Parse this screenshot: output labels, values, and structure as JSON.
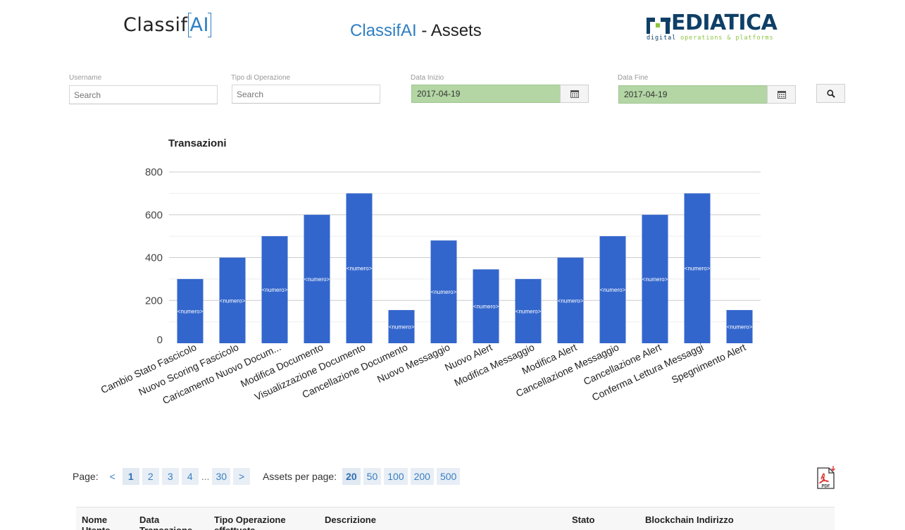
{
  "header": {
    "logo_left_text": "Classif",
    "logo_left_ai": "AI",
    "title_brand": "ClassifAI",
    "title_rest": " - Assets",
    "logo_right_text": "EDIATICA",
    "logo_right_tagline_d": "digital ",
    "logo_right_tagline": "operations & platforms"
  },
  "filters": {
    "username": {
      "label": "Username",
      "placeholder": "Search"
    },
    "tipo_operazione": {
      "label": "Tipo di Operazione",
      "placeholder": "Search"
    },
    "data_inizio": {
      "label": "Data Inizio",
      "value": "2017-04-19"
    },
    "data_fine": {
      "label": "Data Fine",
      "value": "2017-04-19"
    }
  },
  "icons": {
    "calendar": "calendar-icon",
    "search": "search-icon",
    "pdf": "pdf-icon"
  },
  "colors": {
    "accent": "#2f7fc1",
    "bar": "#3366cc",
    "date_bg": "#b3d6a4",
    "brand_dark": "#0f3f66",
    "brand_green": "#8cc63f"
  },
  "chart_data": {
    "type": "bar",
    "title": "Transazioni",
    "xlabel": "",
    "ylabel": "",
    "ylim": [
      0,
      800
    ],
    "yticks": [
      0,
      200,
      400,
      600,
      800
    ],
    "grid": true,
    "categories": [
      "Cambio Stato Fascicolo",
      "Nuovo Scoring Fascicolo",
      "Caricamento Nuovo Docum...",
      "Modifica Documento",
      "Visualizzazione Documento",
      "Cancellazione Documento",
      "Nuovo Messaggio",
      "Nuovo Alert",
      "Modifica Messaggio",
      "Modifica Alert",
      "Cancellazione Messaggio",
      "Cancellazione Alert",
      "Conferma Lettura Messaggi",
      "Spegnimento Alert"
    ],
    "values": [
      300,
      400,
      500,
      600,
      700,
      155,
      480,
      345,
      300,
      400,
      500,
      600,
      700,
      155
    ],
    "bar_label": "<numero>"
  },
  "pagination": {
    "page_label": "Page:",
    "prev": "<",
    "pages": [
      "1",
      "2",
      "3",
      "4"
    ],
    "ellipsis": "...",
    "last": "30",
    "next": ">",
    "per_page_label": "Assets per page:",
    "per_page_options": [
      "20",
      "50",
      "100",
      "200",
      "500"
    ],
    "current_page": "1",
    "current_per_page": "20"
  },
  "table": {
    "columns": [
      "Nome Utente",
      "Data Transazione",
      "Tipo Operazione effettuata",
      "Descrizione",
      "Stato",
      "Blockchain Indirizzo"
    ]
  }
}
